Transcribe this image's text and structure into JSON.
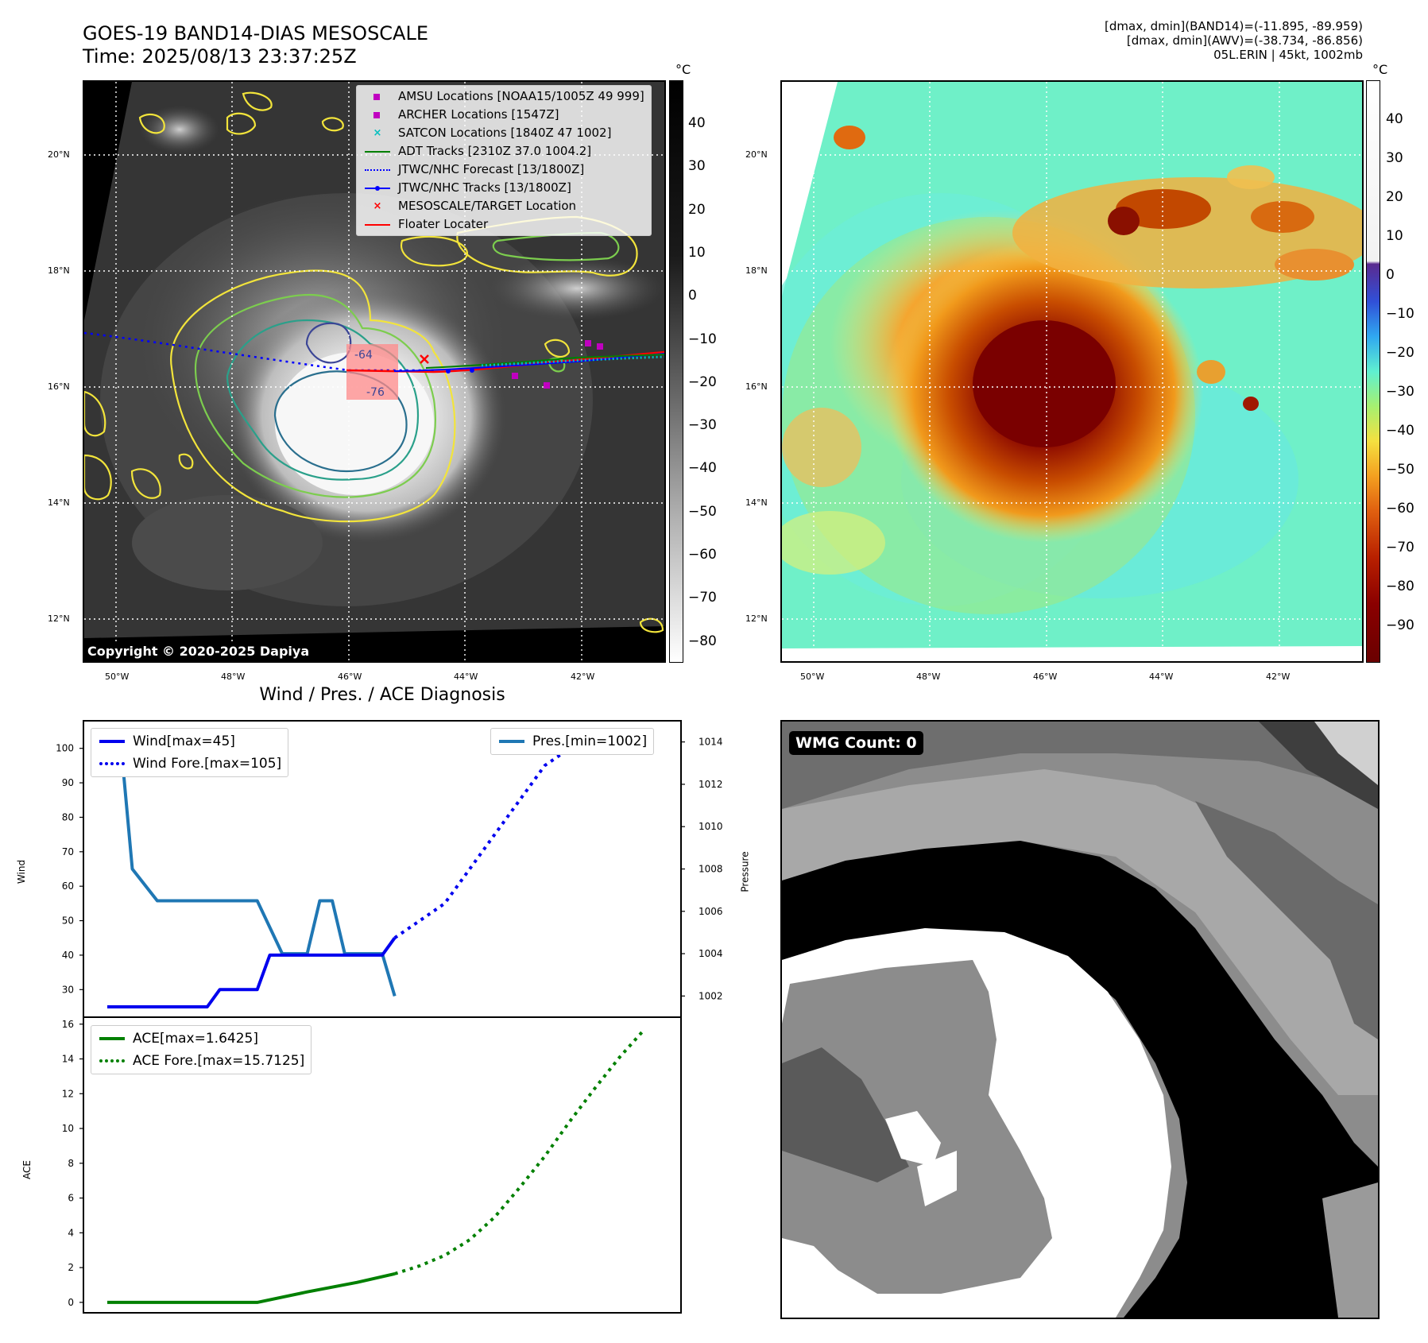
{
  "header": {
    "title_line1": "GOES-19 BAND14-DIAS MESOSCALE",
    "title_line2": "Time: 2025/08/13 23:37:25Z",
    "info_line1": "[dmax, dmin](BAND14)=(-11.895, -89.959)",
    "info_line2": "[dmax, dmin](AWV)=(-38.734, -86.856)",
    "info_line3": "05L.ERIN | 45kt, 1002mb"
  },
  "map": {
    "lat_labels": [
      "20°N",
      "18°N",
      "16°N",
      "14°N",
      "12°N"
    ],
    "lon_labels": [
      "50°W",
      "48°W",
      "46°W",
      "44°W",
      "42°W"
    ],
    "copyright": "Copyright © 2020-2025 Dapiya",
    "contour_labels": [
      "-64",
      "-76"
    ]
  },
  "legend": [
    {
      "label": "AMSU Locations [NOAA15/1005Z 49 999]",
      "symbol": "square",
      "color": "#c000c0"
    },
    {
      "label": "ARCHER Locations [1547Z]",
      "symbol": "square",
      "color": "#c000c0"
    },
    {
      "label": "SATCON Locations [1840Z 47 1002]",
      "symbol": "x",
      "color": "#00bfbf"
    },
    {
      "label": "ADT Tracks [2310Z 37.0 1004.2]",
      "symbol": "line",
      "color": "#008000"
    },
    {
      "label": "JTWC/NHC Forecast [13/1800Z]",
      "symbol": "dotted",
      "color": "#0000ff"
    },
    {
      "label": "JTWC/NHC Tracks [13/1800Z]",
      "symbol": "line-dot",
      "color": "#0000ff"
    },
    {
      "label": "MESOSCALE/TARGET Location",
      "symbol": "x",
      "color": "#ff0000"
    },
    {
      "label": "Floater Locater",
      "symbol": "line",
      "color": "#ff0000"
    }
  ],
  "colorbar_gray": {
    "unit": "°C",
    "ticks": [
      "40",
      "30",
      "20",
      "10",
      "0",
      "−10",
      "−20",
      "−30",
      "−40",
      "−50",
      "−60",
      "−70",
      "−80"
    ]
  },
  "colorbar_color": {
    "unit": "°C",
    "ticks": [
      "40",
      "30",
      "20",
      "10",
      "0",
      "−10",
      "−20",
      "−30",
      "−40",
      "−50",
      "−60",
      "−70",
      "−80",
      "−90"
    ]
  },
  "diagnosis": {
    "title": "Wind / Pres. / ACE Diagnosis",
    "wind_ylabel": "Wind",
    "pres_ylabel": "Pressure",
    "ace_ylabel": "ACE",
    "legend_wind": "Wind[max=45]",
    "legend_wind_fore": "Wind Fore.[max=105]",
    "legend_pres": "Pres.[min=1002]",
    "legend_ace": "ACE[max=1.6425]",
    "legend_ace_fore": "ACE Fore.[max=15.7125]",
    "wmg": "WMG Count: 0"
  },
  "chart_data": [
    {
      "type": "line",
      "title": "Wind / Pres. / ACE Diagnosis",
      "ylabel": "Wind",
      "ylim": [
        22,
        108
      ],
      "xlim": [
        0,
        22
      ],
      "yticks": [
        30,
        40,
        50,
        60,
        70,
        80,
        90,
        100
      ],
      "series": [
        {
          "name": "Wind[max=45]",
          "color": "#0000ee",
          "style": "solid",
          "x": [
            0,
            1,
            2,
            3,
            4,
            4.5,
            5,
            6,
            6.5,
            7,
            8,
            9,
            10,
            11,
            11.5
          ],
          "values": [
            25,
            25,
            25,
            25,
            25,
            30,
            30,
            30,
            40,
            40,
            40,
            40,
            40,
            40,
            45
          ]
        },
        {
          "name": "Wind Fore.[max=105]",
          "color": "#0000ee",
          "style": "dotted",
          "x": [
            11.5,
            12.5,
            13.5,
            14.5,
            15.5,
            16.5,
            17.5,
            18.5,
            19.5
          ],
          "values": [
            45,
            50,
            55,
            65,
            75,
            85,
            95,
            100,
            105
          ]
        }
      ]
    },
    {
      "type": "line",
      "ylabel": "Pressure",
      "ylim": [
        1001.0,
        1015.0
      ],
      "xlim": [
        0,
        22
      ],
      "yticks": [
        1002,
        1004,
        1006,
        1008,
        1010,
        1012,
        1014
      ],
      "series": [
        {
          "name": "Pres.[min=1002]",
          "color": "#1f77b4",
          "style": "solid",
          "x": [
            0,
            0.5,
            1,
            2,
            3,
            4,
            5,
            6,
            7,
            8,
            8.5,
            9,
            9.5,
            10,
            11,
            11.5
          ],
          "values": [
            1014.5,
            1014.5,
            1008,
            1006.5,
            1006.5,
            1006.5,
            1006.5,
            1006.5,
            1004,
            1004,
            1006.5,
            1006.5,
            1004,
            1004,
            1004,
            1002
          ]
        }
      ]
    },
    {
      "type": "line",
      "ylabel": "ACE",
      "ylim": [
        -0.6,
        16.4
      ],
      "xlim": [
        0,
        22
      ],
      "yticks": [
        0,
        2,
        4,
        6,
        8,
        10,
        12,
        14,
        16
      ],
      "series": [
        {
          "name": "ACE[max=1.6425]",
          "color": "#008000",
          "style": "solid",
          "x": [
            0,
            2,
            4,
            6,
            8,
            10,
            11.5
          ],
          "values": [
            0,
            0,
            0,
            0,
            0.6,
            1.15,
            1.6425
          ]
        },
        {
          "name": "ACE Fore.[max=15.7125]",
          "color": "#008000",
          "style": "dotted",
          "x": [
            11.5,
            12.5,
            13.5,
            14.5,
            15.5,
            16.5,
            17.5,
            18.5,
            19.5,
            20.5,
            21.5
          ],
          "values": [
            1.6425,
            2.1,
            2.7,
            3.6,
            4.9,
            6.6,
            8.4,
            10.4,
            12.3,
            14.1,
            15.7125
          ]
        }
      ]
    }
  ]
}
